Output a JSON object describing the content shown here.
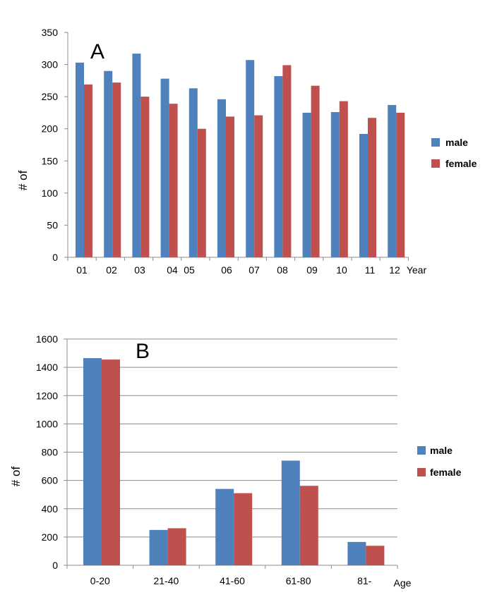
{
  "chart_data": [
    {
      "type": "bar",
      "panel_label": "A",
      "ylabel": "# of",
      "xlabel": "Year",
      "ylim": [
        0,
        350
      ],
      "yticks": [
        0,
        50,
        100,
        150,
        200,
        250,
        300,
        350
      ],
      "grid": false,
      "legend": "right",
      "categories": [
        "01",
        "02",
        "03",
        "04",
        "05",
        "06",
        "07",
        "08",
        "09",
        "10",
        "11",
        "12"
      ],
      "series": [
        {
          "name": "male",
          "color": "#4f81bd",
          "values": [
            303,
            290,
            317,
            278,
            263,
            246,
            307,
            282,
            225,
            226,
            192,
            237
          ]
        },
        {
          "name": "female",
          "color": "#c0504d",
          "values": [
            269,
            272,
            250,
            239,
            200,
            219,
            221,
            299,
            267,
            243,
            217,
            225
          ]
        }
      ]
    },
    {
      "type": "bar",
      "panel_label": "B",
      "ylabel": "# of",
      "xlabel": "Age",
      "ylim": [
        0,
        1600
      ],
      "yticks": [
        0,
        200,
        400,
        600,
        800,
        1000,
        1200,
        1400,
        1600
      ],
      "grid": true,
      "legend": "right",
      "categories": [
        "0-20",
        "21-40",
        "41-60",
        "61-80",
        "81-"
      ],
      "series": [
        {
          "name": "male",
          "color": "#4f81bd",
          "values": [
            1465,
            250,
            540,
            740,
            165
          ]
        },
        {
          "name": "female",
          "color": "#c0504d",
          "values": [
            1455,
            262,
            510,
            562,
            138
          ]
        }
      ]
    }
  ]
}
